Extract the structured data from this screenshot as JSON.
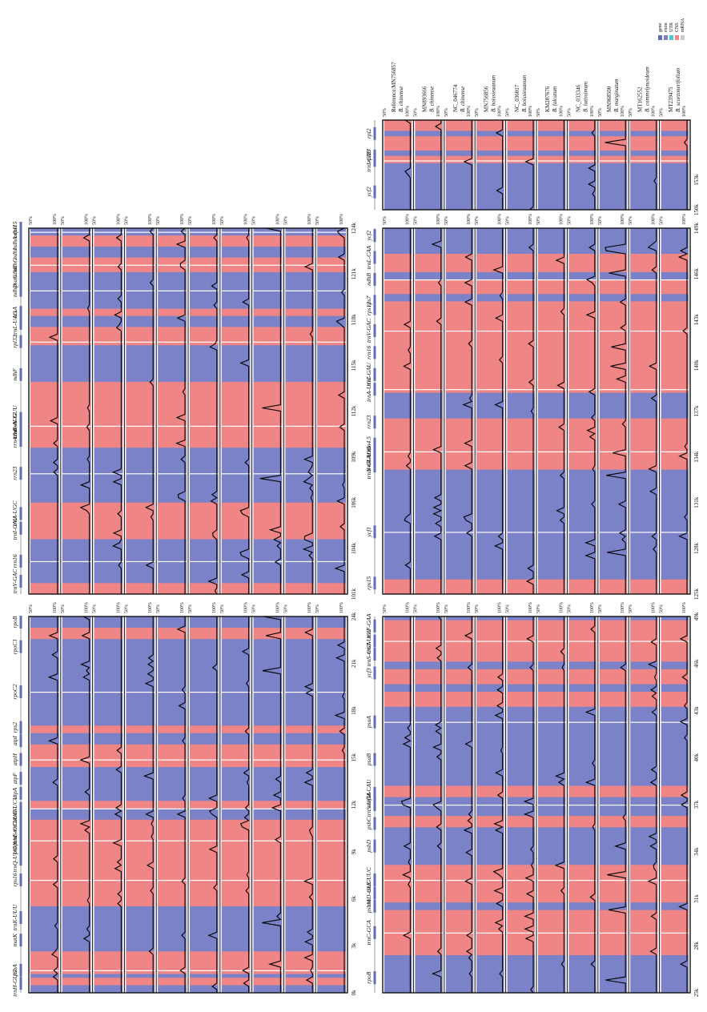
{
  "chart_data": {
    "type": "area",
    "title": "",
    "colors": {
      "exon": "#7b82c7",
      "CNS": "#ef8585",
      "gene": "#5f6fb4",
      "UTR": "#4ec8d4",
      "mRNA": "#c8c8c8",
      "peak": "#000000"
    },
    "legend": {
      "position": "top-right",
      "entries": [
        "gene",
        "exon",
        "UTR",
        "CNS",
        "mRNA"
      ]
    },
    "pct_labels": [
      "50%",
      "100%"
    ],
    "sequences": [
      {
        "id": "Reference:MN756857",
        "species": "B. chinense"
      },
      {
        "id": "MN893666",
        "species": "B. chinense"
      },
      {
        "id": "NC_046774",
        "species": "B. chinense"
      },
      {
        "id": "MN756856",
        "species": "B. boissieuanum"
      },
      {
        "id": "NC_036017",
        "species": "B. boissieuanum"
      },
      {
        "id": "KM207676",
        "species": "B. falcatum"
      },
      {
        "id": "NC_033346",
        "species": "B. latissimum"
      },
      {
        "id": "MN968500",
        "species": "B. marginatum"
      },
      {
        "id": "MT162552",
        "species": "B. commelynoideum"
      },
      {
        "id": "MT239475",
        "species": "B. scorzonerifolium"
      }
    ],
    "panels": [
      {
        "id": "A",
        "ticks": [
          "0k",
          "3k",
          "6k",
          "9k",
          "12k",
          "15k",
          "18k",
          "21k",
          "24k"
        ],
        "genes": [
          {
            "name": "trnH-GUG",
            "pos": 0.025
          },
          {
            "name": "psbA",
            "pos": 0.06
          },
          {
            "name": "matK",
            "pos": 0.14
          },
          {
            "name": "trnK-UUU",
            "pos": 0.2
          },
          {
            "name": "rps16",
            "pos": 0.3
          },
          {
            "name": "trnQ-UUG",
            "pos": 0.355
          },
          {
            "name": "psbK",
            "pos": 0.385
          },
          {
            "name": "psbI",
            "pos": 0.405
          },
          {
            "name": "trnS-GCU",
            "pos": 0.43
          },
          {
            "name": "trnG-UCC",
            "pos": 0.46
          },
          {
            "name": "trnR-UCU",
            "pos": 0.49
          },
          {
            "name": "atpA",
            "pos": 0.53
          },
          {
            "name": "atpF",
            "pos": 0.57
          },
          {
            "name": "atpH",
            "pos": 0.62
          },
          {
            "name": "atpI",
            "pos": 0.67
          },
          {
            "name": "rps2",
            "pos": 0.705
          },
          {
            "name": "rpoC2",
            "pos": 0.8
          },
          {
            "name": "rpoC1",
            "pos": 0.92
          },
          {
            "name": "rpoB",
            "pos": 0.985
          }
        ],
        "cns_bands": [
          [
            0.02,
            0.04
          ],
          [
            0.05,
            0.11
          ],
          [
            0.23,
            0.46
          ],
          [
            0.49,
            0.51
          ],
          [
            0.6,
            0.66
          ],
          [
            0.69,
            0.71
          ],
          [
            0.94,
            0.97
          ]
        ]
      },
      {
        "id": "B",
        "ticks": [
          "25k",
          "28k",
          "31k",
          "34k",
          "37k",
          "40k",
          "43k",
          "46k",
          "49k"
        ],
        "genes": [
          {
            "name": "rpoB",
            "pos": 0.04
          },
          {
            "name": "trnC-GCA",
            "pos": 0.16
          },
          {
            "name": "psbM",
            "pos": 0.23
          },
          {
            "name": "trnD-GUC",
            "pos": 0.265
          },
          {
            "name": "trnE-UUC",
            "pos": 0.3
          },
          {
            "name": "psbD",
            "pos": 0.39
          },
          {
            "name": "psbC",
            "pos": 0.45
          },
          {
            "name": "trnS-UGA",
            "pos": 0.5
          },
          {
            "name": "trnfM-CAU",
            "pos": 0.53
          },
          {
            "name": "psaB",
            "pos": 0.62
          },
          {
            "name": "psaA",
            "pos": 0.72
          },
          {
            "name": "ycf3",
            "pos": 0.85
          },
          {
            "name": "trnS-GGA",
            "pos": 0.9
          },
          {
            "name": "trnT-UGU",
            "pos": 0.935
          },
          {
            "name": "trnF-GAA",
            "pos": 0.975
          }
        ],
        "cns_bands": [
          [
            0.1,
            0.22
          ],
          [
            0.24,
            0.34
          ],
          [
            0.44,
            0.47
          ],
          [
            0.52,
            0.55
          ],
          [
            0.76,
            0.8
          ],
          [
            0.82,
            0.86
          ],
          [
            0.88,
            0.99
          ]
        ]
      },
      {
        "id": "C",
        "ticks": [
          "101k",
          "104k",
          "106k",
          "109k",
          "112k",
          "115k",
          "118k",
          "121k",
          "124k"
        ],
        "genes": [
          {
            "name": "trnV-GAC",
            "pos": 0.035
          },
          {
            "name": "rrn16",
            "pos": 0.09
          },
          {
            "name": "trnI-GAU",
            "pos": 0.18
          },
          {
            "name": "trnA-UGC",
            "pos": 0.22
          },
          {
            "name": "rrn23",
            "pos": 0.33
          },
          {
            "name": "rrn4.5",
            "pos": 0.42
          },
          {
            "name": "rrn5",
            "pos": 0.44
          },
          {
            "name": "trnR-ACG",
            "pos": 0.46
          },
          {
            "name": "trnN-GUU",
            "pos": 0.48
          },
          {
            "name": "ndhF",
            "pos": 0.6
          },
          {
            "name": "rpl32",
            "pos": 0.69
          },
          {
            "name": "trnL-UAG",
            "pos": 0.74
          },
          {
            "name": "ccsA",
            "pos": 0.77
          },
          {
            "name": "ndhD",
            "pos": 0.83
          },
          {
            "name": "psaC",
            "pos": 0.855
          },
          {
            "name": "ndhE",
            "pos": 0.88
          },
          {
            "name": "ndhG",
            "pos": 0.9
          },
          {
            "name": "ndhI",
            "pos": 0.93
          },
          {
            "name": "ndhA",
            "pos": 0.96
          },
          {
            "name": "ndhH",
            "pos": 0.99
          },
          {
            "name": "rps15",
            "pos": 1.0
          }
        ],
        "cns_bands": [
          [
            0.0,
            0.03
          ],
          [
            0.15,
            0.25
          ],
          [
            0.4,
            0.58
          ],
          [
            0.68,
            0.73
          ],
          [
            0.76,
            0.78
          ],
          [
            0.88,
            0.92
          ],
          [
            0.95,
            0.98
          ]
        ]
      },
      {
        "id": "D",
        "ticks": [
          "125k",
          "128k",
          "131k",
          "134k",
          "137k",
          "140k",
          "143k",
          "146k",
          "149k"
        ],
        "genes": [
          {
            "name": "rps15",
            "pos": 0.03
          },
          {
            "name": "ycf1",
            "pos": 0.17
          },
          {
            "name": "trnN-GUU",
            "pos": 0.35
          },
          {
            "name": "trnR-ACG",
            "pos": 0.37
          },
          {
            "name": "rrn5",
            "pos": 0.39
          },
          {
            "name": "rrn4.5",
            "pos": 0.41
          },
          {
            "name": "rrn23",
            "pos": 0.47
          },
          {
            "name": "trnA-UGC",
            "pos": 0.56
          },
          {
            "name": "trnI-GAU",
            "pos": 0.6
          },
          {
            "name": "rrn16",
            "pos": 0.66
          },
          {
            "name": "trnV-GAC",
            "pos": 0.72
          },
          {
            "name": "rps12",
            "pos": 0.78
          },
          {
            "name": "rps7",
            "pos": 0.8
          },
          {
            "name": "ndhB",
            "pos": 0.86
          },
          {
            "name": "trnL-CAA",
            "pos": 0.92
          },
          {
            "name": "ycf2",
            "pos": 0.98
          }
        ],
        "cns_bands": [
          [
            0.0,
            0.04
          ],
          [
            0.34,
            0.48
          ],
          [
            0.55,
            0.8
          ],
          [
            0.82,
            0.86
          ],
          [
            0.88,
            0.93
          ]
        ]
      },
      {
        "id": "E",
        "ticks": [
          "150k",
          "153k",
          "",
          ""
        ],
        "genes": [
          {
            "name": "ycf2",
            "pos": 0.2
          },
          {
            "name": "trnI-CAU",
            "pos": 0.55
          },
          {
            "name": "rpl23",
            "pos": 0.6
          },
          {
            "name": "rpl2",
            "pos": 0.85
          }
        ],
        "cns_bands": [
          [
            0.52,
            0.6
          ],
          [
            0.66,
            0.82
          ],
          [
            0.88,
            1.0
          ]
        ]
      }
    ]
  }
}
